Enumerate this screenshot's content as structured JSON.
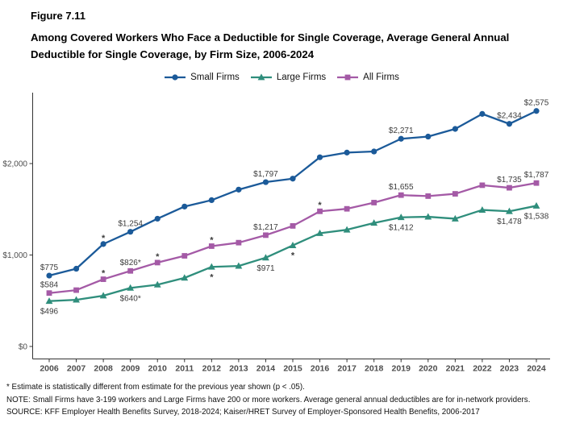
{
  "figure": {
    "number": "Figure 7.11",
    "title": "Among Covered Workers Who Face a Deductible for Single Coverage, Average General Annual Deductible for Single Coverage, by Firm Size, 2006-2024"
  },
  "legend": [
    {
      "label": "Small Firms",
      "color": "#1b5a99",
      "marker": "circle"
    },
    {
      "label": "Large Firms",
      "color": "#2f8e7c",
      "marker": "triangle"
    },
    {
      "label": "All Firms",
      "color": "#a45aa6",
      "marker": "square"
    }
  ],
  "chart_data": {
    "type": "line",
    "x": [
      2006,
      2007,
      2008,
      2009,
      2010,
      2011,
      2012,
      2013,
      2014,
      2015,
      2016,
      2017,
      2018,
      2019,
      2020,
      2021,
      2022,
      2023,
      2024
    ],
    "series": [
      {
        "name": "Small Firms",
        "color": "#1b5a99",
        "marker": "circle",
        "values": [
          775,
          850,
          1120,
          1254,
          1397,
          1530,
          1600,
          1715,
          1797,
          1835,
          2069,
          2120,
          2132,
          2271,
          2295,
          2379,
          2543,
          2434,
          2575
        ]
      },
      {
        "name": "Large Firms",
        "color": "#2f8e7c",
        "marker": "triangle",
        "values": [
          496,
          510,
          555,
          640,
          675,
          750,
          870,
          880,
          971,
          1105,
          1238,
          1276,
          1350,
          1412,
          1418,
          1397,
          1493,
          1478,
          1538
        ]
      },
      {
        "name": "All Firms",
        "color": "#a45aa6",
        "marker": "square",
        "values": [
          584,
          616,
          735,
          826,
          917,
          991,
          1097,
          1135,
          1217,
          1318,
          1478,
          1505,
          1573,
          1655,
          1644,
          1669,
          1763,
          1735,
          1787
        ]
      }
    ],
    "point_labels": [
      {
        "series": "Small Firms",
        "year": 2006,
        "text": "$775",
        "position": "above"
      },
      {
        "series": "Small Firms",
        "year": 2009,
        "text": "$1,254",
        "position": "above"
      },
      {
        "series": "Small Firms",
        "year": 2014,
        "text": "$1,797",
        "position": "above"
      },
      {
        "series": "Small Firms",
        "year": 2019,
        "text": "$2,271",
        "position": "above"
      },
      {
        "series": "Small Firms",
        "year": 2023,
        "text": "$2,434",
        "position": "above"
      },
      {
        "series": "Small Firms",
        "year": 2024,
        "text": "$2,575",
        "position": "above"
      },
      {
        "series": "All Firms",
        "year": 2006,
        "text": "$584",
        "position": "above"
      },
      {
        "series": "All Firms",
        "year": 2009,
        "text": "$826*",
        "position": "above"
      },
      {
        "series": "All Firms",
        "year": 2014,
        "text": "$1,217",
        "position": "above"
      },
      {
        "series": "All Firms",
        "year": 2019,
        "text": "$1,655",
        "position": "above"
      },
      {
        "series": "All Firms",
        "year": 2023,
        "text": "$1,735",
        "position": "above"
      },
      {
        "series": "All Firms",
        "year": 2024,
        "text": "$1,787",
        "position": "above"
      },
      {
        "series": "Large Firms",
        "year": 2006,
        "text": "$496",
        "position": "below"
      },
      {
        "series": "Large Firms",
        "year": 2009,
        "text": "$640*",
        "position": "below"
      },
      {
        "series": "Large Firms",
        "year": 2014,
        "text": "$971",
        "position": "below"
      },
      {
        "series": "Large Firms",
        "year": 2019,
        "text": "$1,412",
        "position": "below"
      },
      {
        "series": "Large Firms",
        "year": 2023,
        "text": "$1,478",
        "position": "below"
      },
      {
        "series": "Large Firms",
        "year": 2024,
        "text": "$1,538",
        "position": "below"
      }
    ],
    "significance_marks": [
      {
        "series": "Small Firms",
        "year": 2008,
        "position": "above"
      },
      {
        "series": "All Firms",
        "year": 2008,
        "position": "above"
      },
      {
        "series": "All Firms",
        "year": 2010,
        "position": "above"
      },
      {
        "series": "All Firms",
        "year": 2012,
        "position": "above"
      },
      {
        "series": "Large Firms",
        "year": 2012,
        "position": "below"
      },
      {
        "series": "Large Firms",
        "year": 2015,
        "position": "below"
      },
      {
        "series": "All Firms",
        "year": 2016,
        "position": "above"
      }
    ],
    "ytick_values": [
      0,
      1000,
      2000
    ],
    "ytick_labels": [
      "$0",
      "$1,000",
      "$2,000"
    ],
    "ylim": [
      0,
      2800
    ],
    "grid": false,
    "legend_position": "top"
  },
  "footnotes": {
    "asterisk": "* Estimate is statistically different from estimate for the previous year shown (p < .05).",
    "note": "NOTE: Small Firms have 3-199 workers and Large Firms have 200 or more workers. Average general annual deductibles are for in-network providers.",
    "source": "SOURCE: KFF Employer Health Benefits Survey, 2018-2024; Kaiser/HRET Survey of Employer-Sponsored Health Benefits, 2006-2017"
  }
}
